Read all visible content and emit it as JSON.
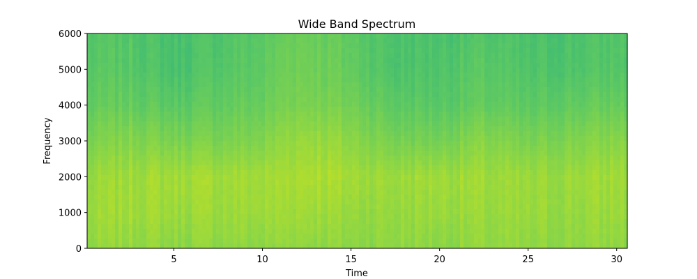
{
  "chart_data": {
    "type": "heatmap",
    "title": "Wide Band Spectrum",
    "xlabel": "Time",
    "ylabel": "Frequency",
    "xlim": [
      0.1,
      30.6
    ],
    "ylim": [
      0,
      6000
    ],
    "xticks": [
      5,
      10,
      15,
      20,
      25,
      30
    ],
    "yticks": [
      0,
      1000,
      2000,
      3000,
      4000,
      5000,
      6000
    ],
    "grid": false,
    "colormap": "viridis",
    "frequency_bands": [
      0,
      1000,
      2000,
      3000,
      4000,
      5000,
      6000
    ],
    "time_points": [
      0,
      2.5,
      5,
      7.5,
      10,
      11.5,
      13,
      15,
      17.5,
      20,
      22.5,
      25,
      27.5,
      30.6
    ],
    "intensity": [
      [
        0.84,
        0.86,
        0.84,
        0.85,
        0.84,
        0.86,
        0.85,
        0.84,
        0.85,
        0.84,
        0.85,
        0.84,
        0.85,
        0.85
      ],
      [
        0.86,
        0.88,
        0.87,
        0.87,
        0.87,
        0.88,
        0.88,
        0.86,
        0.86,
        0.87,
        0.86,
        0.86,
        0.86,
        0.87
      ],
      [
        0.85,
        0.88,
        0.88,
        0.88,
        0.88,
        0.89,
        0.9,
        0.88,
        0.87,
        0.88,
        0.87,
        0.86,
        0.87,
        0.88
      ],
      [
        0.8,
        0.83,
        0.81,
        0.81,
        0.82,
        0.86,
        0.87,
        0.84,
        0.8,
        0.8,
        0.83,
        0.8,
        0.82,
        0.84
      ],
      [
        0.75,
        0.77,
        0.74,
        0.76,
        0.77,
        0.81,
        0.81,
        0.79,
        0.75,
        0.74,
        0.76,
        0.74,
        0.76,
        0.77
      ],
      [
        0.73,
        0.74,
        0.7,
        0.73,
        0.75,
        0.79,
        0.79,
        0.76,
        0.71,
        0.72,
        0.74,
        0.71,
        0.72,
        0.73
      ],
      [
        0.72,
        0.73,
        0.7,
        0.72,
        0.74,
        0.78,
        0.78,
        0.75,
        0.71,
        0.71,
        0.72,
        0.7,
        0.71,
        0.73
      ]
    ]
  }
}
